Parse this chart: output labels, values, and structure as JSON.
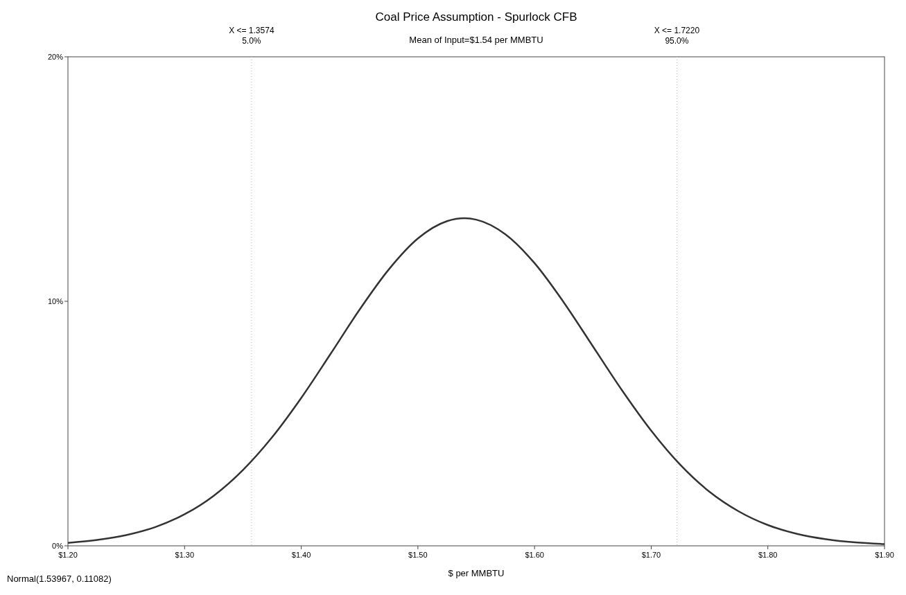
{
  "chart_data": {
    "type": "line",
    "title": "Coal Price Assumption - Spurlock CFB",
    "subtitle": "Mean of Input=$1.54 per MMBTU",
    "xlabel": "$ per MMBTU",
    "annotations": [
      "Normal(1.53967, 0.11082)"
    ],
    "x": [
      1.2,
      1.225,
      1.25,
      1.275,
      1.3,
      1.325,
      1.35,
      1.375,
      1.4,
      1.425,
      1.45,
      1.475,
      1.5,
      1.525,
      1.54,
      1.55,
      1.575,
      1.6,
      1.625,
      1.65,
      1.675,
      1.7,
      1.725,
      1.75,
      1.775,
      1.8,
      1.825,
      1.85,
      1.875,
      1.9
    ],
    "series": [
      {
        "color": "#333333",
        "values": [
          0.12,
          0.24,
          0.44,
          0.77,
          1.29,
          2.05,
          3.1,
          4.44,
          6.05,
          7.84,
          9.66,
          11.3,
          12.57,
          13.28,
          13.4,
          13.34,
          12.74,
          11.56,
          9.96,
          8.16,
          6.36,
          4.71,
          3.31,
          2.21,
          1.41,
          0.85,
          0.49,
          0.27,
          0.14,
          0.07
        ]
      }
    ],
    "xlim": [
      1.2,
      1.9
    ],
    "xticks": [
      {
        "value": 1.2,
        "label": "$1.20"
      },
      {
        "value": 1.3,
        "label": "$1.30"
      },
      {
        "value": 1.4,
        "label": "$1.40"
      },
      {
        "value": 1.5,
        "label": "$1.50"
      },
      {
        "value": 1.6,
        "label": "$1.60"
      },
      {
        "value": 1.7,
        "label": "$1.70"
      },
      {
        "value": 1.8,
        "label": "$1.80"
      },
      {
        "value": 1.9,
        "label": "$1.90"
      }
    ],
    "ylim": [
      0,
      20
    ],
    "yticks": [
      {
        "value": 0,
        "label": "0%"
      },
      {
        "value": 10,
        "label": "10%"
      },
      {
        "value": 20,
        "label": "20%"
      }
    ],
    "ref_lines": [
      {
        "axis": "x",
        "value": 1.3574,
        "label": "X <= 1.3574\n5.0%",
        "color": "#bbbbbb",
        "line_style": "dotted"
      },
      {
        "axis": "x",
        "value": 1.722,
        "label": "X <= 1.7220\n95.0%",
        "color": "#bbbbbb",
        "line_style": "dotted"
      }
    ],
    "grid": false,
    "marker": "none",
    "line_style": "solid"
  }
}
